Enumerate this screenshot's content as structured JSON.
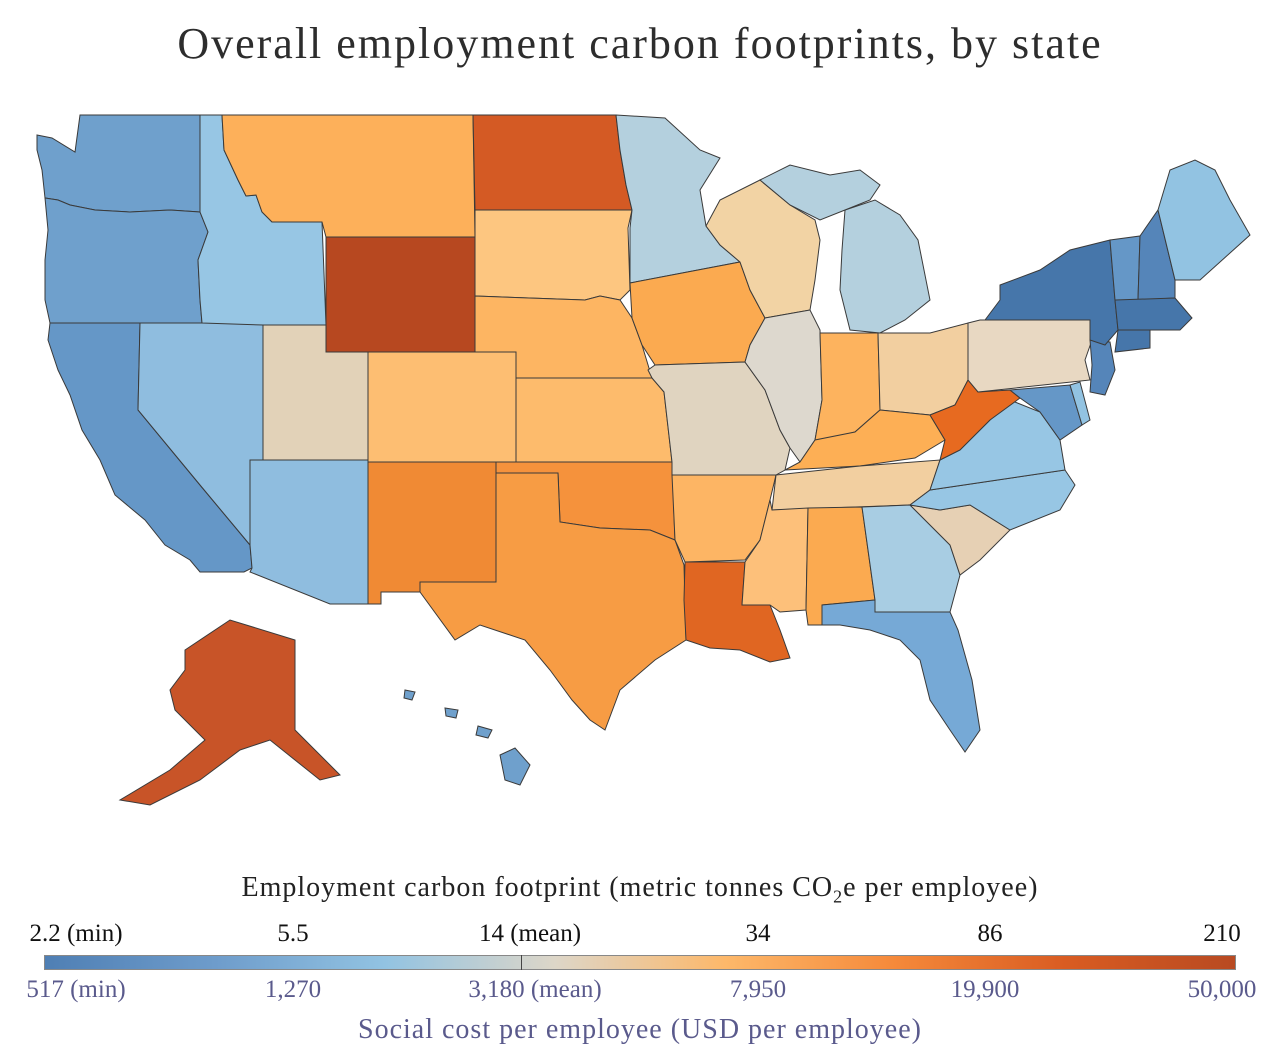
{
  "title": "Overall employment carbon footprints, by state",
  "legend": {
    "top_label": "Employment carbon footprint (metric tonnes CO",
    "top_label_sub": "2",
    "top_label_end": "e per employee)",
    "top_ticks": [
      "2.2 (min)",
      "5.5",
      "14 (mean)",
      "34",
      "86",
      "210"
    ],
    "bottom_ticks": [
      "517 (min)",
      "1,270",
      "3,180 (mean)",
      "7,950",
      "19,900",
      "50,000"
    ],
    "bottom_label": "Social cost per employee (USD per employee)",
    "colors": [
      "#4f7fb4",
      "#6e9ccb",
      "#92c3e2",
      "#ddd6c8",
      "#fdb86a",
      "#f5893a",
      "#d95c22",
      "#b84a22"
    ]
  },
  "states": [
    {
      "name": "Washington",
      "color": "#6fa0cc"
    },
    {
      "name": "Oregon",
      "color": "#6fa0cc"
    },
    {
      "name": "California",
      "color": "#6597c7"
    },
    {
      "name": "Nevada",
      "color": "#8fbddf"
    },
    {
      "name": "Idaho",
      "color": "#97c6e4"
    },
    {
      "name": "Montana",
      "color": "#fdb05a"
    },
    {
      "name": "Wyoming",
      "color": "#b74820"
    },
    {
      "name": "Utah",
      "color": "#e2d2b8"
    },
    {
      "name": "Arizona",
      "color": "#8fbddf"
    },
    {
      "name": "Colorado",
      "color": "#fdbe72"
    },
    {
      "name": "New Mexico",
      "color": "#f08a34"
    },
    {
      "name": "North Dakota",
      "color": "#d45a24"
    },
    {
      "name": "South Dakota",
      "color": "#fdc680"
    },
    {
      "name": "Nebraska",
      "color": "#fdb562"
    },
    {
      "name": "Kansas",
      "color": "#fdbb6c"
    },
    {
      "name": "Oklahoma",
      "color": "#f5923c"
    },
    {
      "name": "Texas",
      "color": "#f79c44"
    },
    {
      "name": "Minnesota",
      "color": "#b4d0de"
    },
    {
      "name": "Iowa",
      "color": "#fbaa50"
    },
    {
      "name": "Missouri",
      "color": "#e0d4c0"
    },
    {
      "name": "Arkansas",
      "color": "#fdb564"
    },
    {
      "name": "Louisiana",
      "color": "#e06622"
    },
    {
      "name": "Wisconsin",
      "color": "#f2d3a4"
    },
    {
      "name": "Illinois",
      "color": "#ddd8ce"
    },
    {
      "name": "Michigan",
      "color": "#b4d0de"
    },
    {
      "name": "Indiana",
      "color": "#fdb35e"
    },
    {
      "name": "Ohio",
      "color": "#f2cfa0"
    },
    {
      "name": "Kentucky",
      "color": "#fdaf55"
    },
    {
      "name": "Tennessee",
      "color": "#f2cfa0"
    },
    {
      "name": "Mississippi",
      "color": "#fdc07a"
    },
    {
      "name": "Alabama",
      "color": "#fbaa50"
    },
    {
      "name": "Georgia",
      "color": "#a8cde3"
    },
    {
      "name": "Florida",
      "color": "#76a9d6"
    },
    {
      "name": "South Carolina",
      "color": "#e6d0b4"
    },
    {
      "name": "North Carolina",
      "color": "#97c6e4"
    },
    {
      "name": "Virginia",
      "color": "#97c6e4"
    },
    {
      "name": "West Virginia",
      "color": "#e76a20"
    },
    {
      "name": "Pennsylvania",
      "color": "#e8d8c2"
    },
    {
      "name": "New York",
      "color": "#4676aa"
    },
    {
      "name": "Vermont",
      "color": "#6597c7"
    },
    {
      "name": "New Hampshire",
      "color": "#5585b9"
    },
    {
      "name": "Maine",
      "color": "#92c3e2"
    },
    {
      "name": "Massachusetts",
      "color": "#4676aa"
    },
    {
      "name": "Connecticut",
      "color": "#4676aa"
    },
    {
      "name": "New Jersey",
      "color": "#5585b9"
    },
    {
      "name": "Maryland",
      "color": "#6597c7"
    },
    {
      "name": "Delaware",
      "color": "#92c3e2"
    },
    {
      "name": "Alaska",
      "color": "#c85428"
    },
    {
      "name": "Hawaii",
      "color": "#6fa0cc"
    }
  ]
}
